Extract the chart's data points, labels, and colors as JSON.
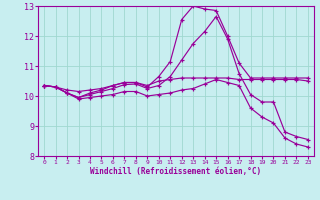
{
  "xlabel": "Windchill (Refroidissement éolien,°C)",
  "bg_color": "#c8eef0",
  "line_color": "#990099",
  "grid_color": "#a0d8d0",
  "xlim": [
    -0.5,
    23.5
  ],
  "ylim": [
    8,
    13
  ],
  "yticks": [
    8,
    9,
    10,
    11,
    12,
    13
  ],
  "xticks": [
    0,
    1,
    2,
    3,
    4,
    5,
    6,
    7,
    8,
    9,
    10,
    11,
    12,
    13,
    14,
    15,
    16,
    17,
    18,
    19,
    20,
    21,
    22,
    23
  ],
  "lines": [
    {
      "x": [
        0,
        1,
        2,
        3,
        4,
        5,
        6,
        7,
        8,
        9,
        10,
        11,
        12,
        13,
        14,
        15,
        16,
        17,
        18,
        19,
        20,
        21,
        22,
        23
      ],
      "y": [
        10.35,
        10.3,
        10.2,
        10.15,
        10.2,
        10.25,
        10.35,
        10.45,
        10.45,
        10.35,
        10.5,
        10.55,
        10.6,
        10.6,
        10.6,
        10.6,
        10.6,
        10.55,
        10.55,
        10.55,
        10.55,
        10.55,
        10.55,
        10.5
      ]
    },
    {
      "x": [
        0,
        1,
        2,
        3,
        4,
        5,
        6,
        7,
        8,
        9,
        10,
        11,
        12,
        13,
        14,
        15,
        16,
        17,
        18,
        19,
        20,
        21,
        22,
        23
      ],
      "y": [
        10.35,
        10.3,
        10.1,
        9.95,
        10.1,
        10.2,
        10.35,
        10.45,
        10.45,
        10.3,
        10.65,
        11.15,
        12.55,
        13.0,
        12.9,
        12.85,
        12.0,
        11.1,
        10.6,
        10.6,
        10.6,
        10.6,
        10.6,
        10.6
      ]
    },
    {
      "x": [
        0,
        1,
        2,
        3,
        4,
        5,
        6,
        7,
        8,
        9,
        10,
        11,
        12,
        13,
        14,
        15,
        16,
        17,
        18,
        19,
        20,
        21,
        22,
        23
      ],
      "y": [
        10.35,
        10.3,
        10.1,
        9.95,
        10.05,
        10.15,
        10.25,
        10.38,
        10.4,
        10.25,
        10.35,
        10.65,
        11.2,
        11.75,
        12.15,
        12.65,
        11.9,
        10.75,
        10.05,
        9.8,
        9.8,
        8.8,
        8.65,
        8.55
      ]
    },
    {
      "x": [
        0,
        1,
        2,
        3,
        4,
        5,
        6,
        7,
        8,
        9,
        10,
        11,
        12,
        13,
        14,
        15,
        16,
        17,
        18,
        19,
        20,
        21,
        22,
        23
      ],
      "y": [
        10.35,
        10.3,
        10.1,
        9.9,
        9.95,
        10.0,
        10.05,
        10.15,
        10.15,
        10.0,
        10.05,
        10.1,
        10.2,
        10.25,
        10.4,
        10.55,
        10.45,
        10.35,
        9.6,
        9.3,
        9.1,
        8.6,
        8.4,
        8.3
      ]
    }
  ]
}
